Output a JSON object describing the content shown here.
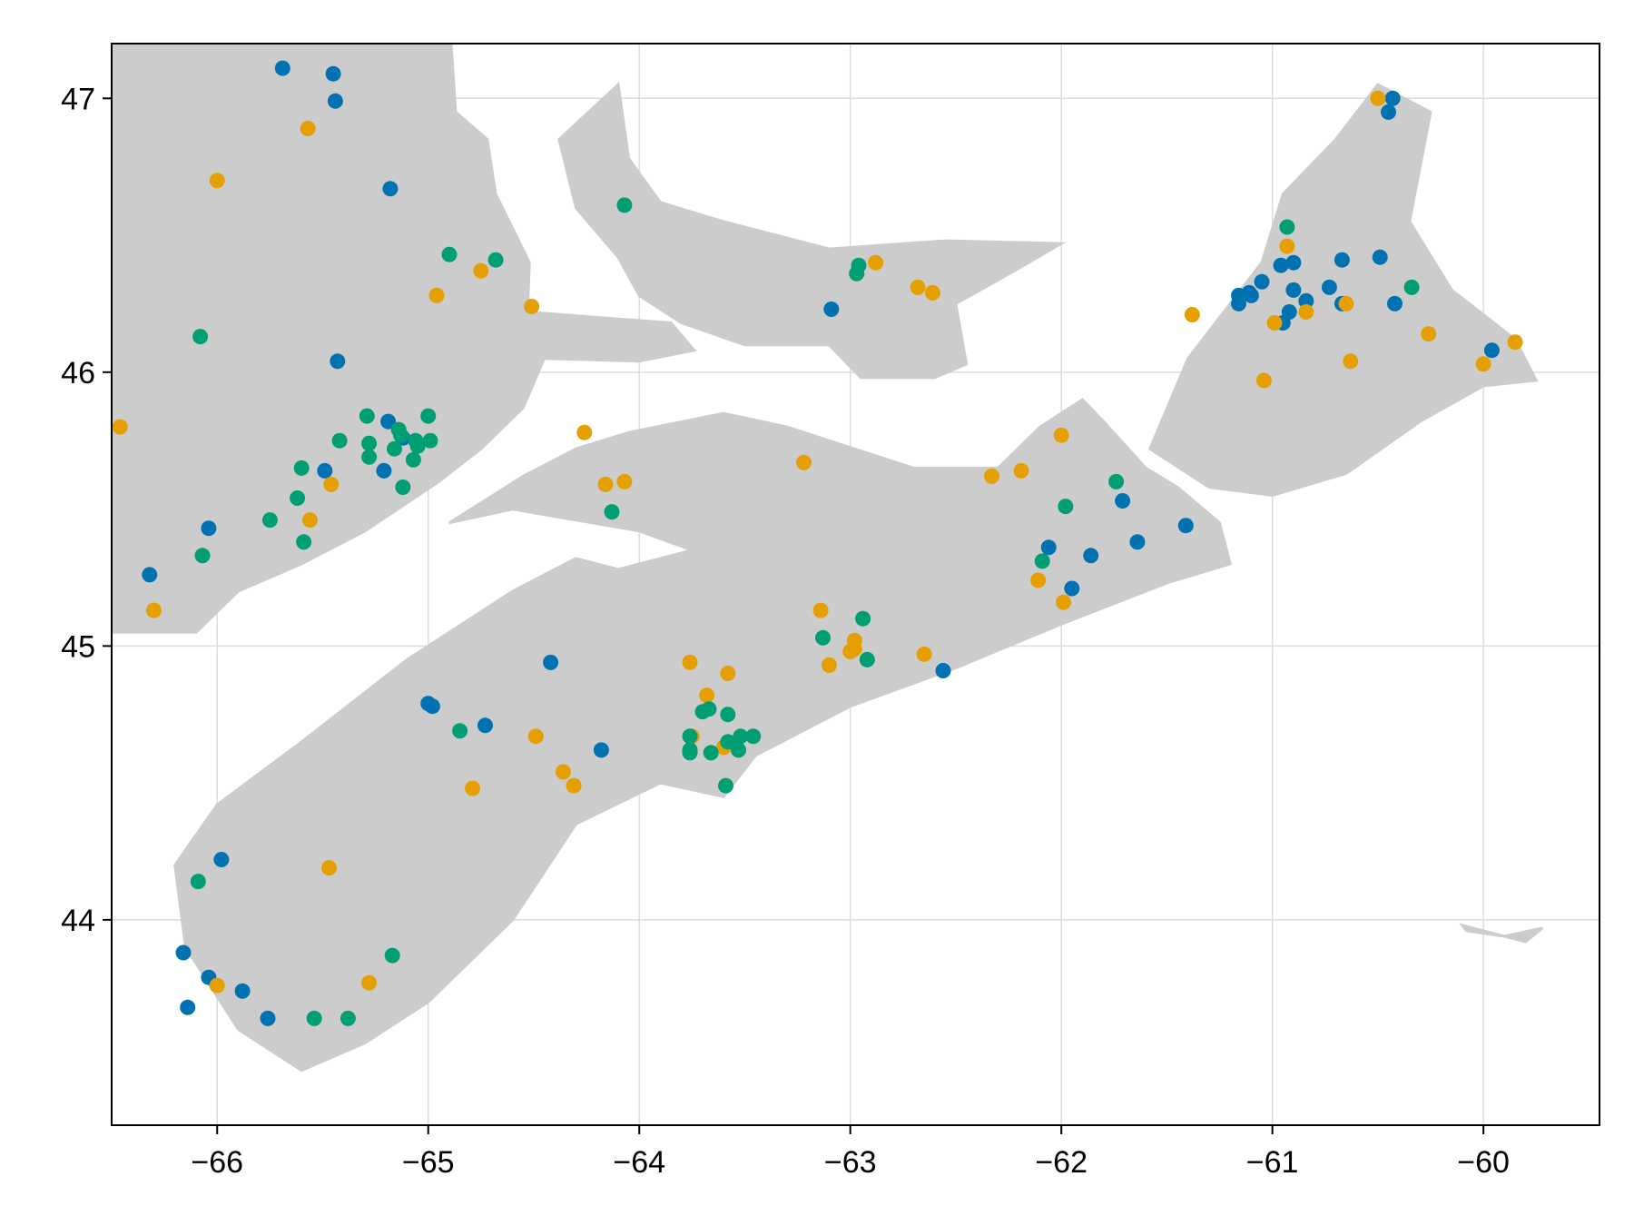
{
  "chart_data": {
    "type": "scatter",
    "title": "",
    "xlabel": "",
    "ylabel": "",
    "xlim": [
      -66.5,
      -59.45
    ],
    "ylim": [
      43.25,
      47.2
    ],
    "grid": true,
    "land_color": "#cccccc",
    "x_ticks": [
      {
        "value": -66,
        "label": "−66"
      },
      {
        "value": -65,
        "label": "−65"
      },
      {
        "value": -64,
        "label": "−64"
      },
      {
        "value": -63,
        "label": "−63"
      },
      {
        "value": -62,
        "label": "−62"
      },
      {
        "value": -61,
        "label": "−61"
      },
      {
        "value": -60,
        "label": "−60"
      }
    ],
    "y_ticks": [
      {
        "value": 44,
        "label": "44"
      },
      {
        "value": 45,
        "label": "45"
      },
      {
        "value": 46,
        "label": "46"
      },
      {
        "value": 47,
        "label": "47"
      }
    ],
    "series": [
      {
        "color": "#0072b2",
        "points": [
          [
            -65.69,
            47.11
          ],
          [
            -65.45,
            47.09
          ],
          [
            -65.44,
            46.99
          ],
          [
            -65.18,
            46.67
          ],
          [
            -65.43,
            46.04
          ],
          [
            -65.19,
            45.82
          ],
          [
            -65.12,
            45.76
          ],
          [
            -65.21,
            45.64
          ],
          [
            -65.49,
            45.64
          ],
          [
            -66.04,
            45.43
          ],
          [
            -66.32,
            45.26
          ],
          [
            -64.42,
            44.94
          ],
          [
            -65.0,
            44.79
          ],
          [
            -64.98,
            44.78
          ],
          [
            -64.73,
            44.71
          ],
          [
            -64.18,
            44.62
          ],
          [
            -65.98,
            44.22
          ],
          [
            -66.16,
            43.88
          ],
          [
            -66.04,
            43.79
          ],
          [
            -65.88,
            43.74
          ],
          [
            -65.76,
            43.64
          ],
          [
            -66.14,
            43.68
          ],
          [
            -63.09,
            46.23
          ],
          [
            -62.56,
            44.91
          ],
          [
            -61.95,
            45.21
          ],
          [
            -62.06,
            45.36
          ],
          [
            -61.86,
            45.33
          ],
          [
            -61.71,
            45.53
          ],
          [
            -61.64,
            45.38
          ],
          [
            -61.41,
            45.44
          ],
          [
            -61.16,
            46.25
          ],
          [
            -61.16,
            46.28
          ],
          [
            -61.11,
            46.29
          ],
          [
            -61.1,
            46.28
          ],
          [
            -61.05,
            46.33
          ],
          [
            -60.96,
            46.39
          ],
          [
            -60.9,
            46.4
          ],
          [
            -60.9,
            46.3
          ],
          [
            -60.92,
            46.22
          ],
          [
            -60.95,
            46.18
          ],
          [
            -60.84,
            46.26
          ],
          [
            -60.73,
            46.31
          ],
          [
            -60.67,
            46.41
          ],
          [
            -60.67,
            46.25
          ],
          [
            -60.49,
            46.42
          ],
          [
            -60.42,
            46.25
          ],
          [
            -60.43,
            47.0
          ],
          [
            -60.45,
            46.95
          ],
          [
            -59.96,
            46.08
          ]
        ]
      },
      {
        "color": "#e69f00",
        "points": [
          [
            -66.46,
            45.8
          ],
          [
            -65.57,
            46.89
          ],
          [
            -66.0,
            46.7
          ],
          [
            -64.75,
            46.37
          ],
          [
            -64.96,
            46.28
          ],
          [
            -64.51,
            46.24
          ],
          [
            -64.26,
            45.78
          ],
          [
            -64.16,
            45.59
          ],
          [
            -64.07,
            45.6
          ],
          [
            -63.22,
            45.67
          ],
          [
            -65.46,
            45.59
          ],
          [
            -65.56,
            45.46
          ],
          [
            -66.3,
            45.13
          ],
          [
            -63.76,
            44.94
          ],
          [
            -63.58,
            44.9
          ],
          [
            -63.68,
            44.82
          ],
          [
            -63.6,
            44.63
          ],
          [
            -63.75,
            44.67
          ],
          [
            -64.49,
            44.67
          ],
          [
            -64.36,
            44.54
          ],
          [
            -64.31,
            44.49
          ],
          [
            -64.79,
            44.48
          ],
          [
            -65.47,
            44.19
          ],
          [
            -65.28,
            43.77
          ],
          [
            -66.0,
            43.76
          ],
          [
            -62.88,
            46.4
          ],
          [
            -62.68,
            46.31
          ],
          [
            -62.61,
            46.29
          ],
          [
            -63.14,
            45.13
          ],
          [
            -62.98,
            45.02
          ],
          [
            -62.98,
            44.99
          ],
          [
            -63.0,
            44.98
          ],
          [
            -63.1,
            44.93
          ],
          [
            -62.65,
            44.97
          ],
          [
            -62.33,
            45.62
          ],
          [
            -62.19,
            45.64
          ],
          [
            -62.0,
            45.77
          ],
          [
            -62.11,
            45.24
          ],
          [
            -61.99,
            45.16
          ],
          [
            -61.38,
            46.21
          ],
          [
            -61.04,
            45.97
          ],
          [
            -60.99,
            46.18
          ],
          [
            -60.93,
            46.46
          ],
          [
            -60.84,
            46.22
          ],
          [
            -60.65,
            46.25
          ],
          [
            -60.63,
            46.04
          ],
          [
            -60.5,
            47.0
          ],
          [
            -60.26,
            46.14
          ],
          [
            -60.0,
            46.03
          ],
          [
            -59.85,
            46.11
          ]
        ]
      },
      {
        "color": "#009e73",
        "points": [
          [
            -64.07,
            46.61
          ],
          [
            -64.9,
            46.43
          ],
          [
            -64.68,
            46.41
          ],
          [
            -66.08,
            46.13
          ],
          [
            -65.29,
            45.84
          ],
          [
            -65.0,
            45.84
          ],
          [
            -65.14,
            45.79
          ],
          [
            -65.13,
            45.77
          ],
          [
            -65.06,
            45.75
          ],
          [
            -64.99,
            45.75
          ],
          [
            -65.42,
            45.75
          ],
          [
            -65.28,
            45.74
          ],
          [
            -65.05,
            45.73
          ],
          [
            -65.16,
            45.72
          ],
          [
            -65.28,
            45.69
          ],
          [
            -65.07,
            45.68
          ],
          [
            -65.6,
            45.65
          ],
          [
            -65.62,
            45.54
          ],
          [
            -65.12,
            45.58
          ],
          [
            -65.75,
            45.46
          ],
          [
            -65.59,
            45.38
          ],
          [
            -66.07,
            45.33
          ],
          [
            -64.13,
            45.49
          ],
          [
            -63.13,
            45.03
          ],
          [
            -62.94,
            45.1
          ],
          [
            -62.92,
            44.95
          ],
          [
            -63.67,
            44.77
          ],
          [
            -63.7,
            44.76
          ],
          [
            -63.58,
            44.75
          ],
          [
            -63.76,
            44.67
          ],
          [
            -63.76,
            44.62
          ],
          [
            -63.76,
            44.61
          ],
          [
            -63.66,
            44.61
          ],
          [
            -63.58,
            44.65
          ],
          [
            -63.52,
            44.67
          ],
          [
            -63.46,
            44.67
          ],
          [
            -63.53,
            44.62
          ],
          [
            -63.59,
            44.49
          ],
          [
            -64.85,
            44.69
          ],
          [
            -66.09,
            44.14
          ],
          [
            -65.17,
            43.87
          ],
          [
            -65.54,
            43.64
          ],
          [
            -65.38,
            43.64
          ],
          [
            -62.97,
            46.36
          ],
          [
            -62.96,
            46.39
          ],
          [
            -61.74,
            45.6
          ],
          [
            -61.98,
            45.51
          ],
          [
            -62.09,
            45.31
          ],
          [
            -60.93,
            46.53
          ],
          [
            -60.34,
            46.31
          ]
        ]
      }
    ]
  }
}
